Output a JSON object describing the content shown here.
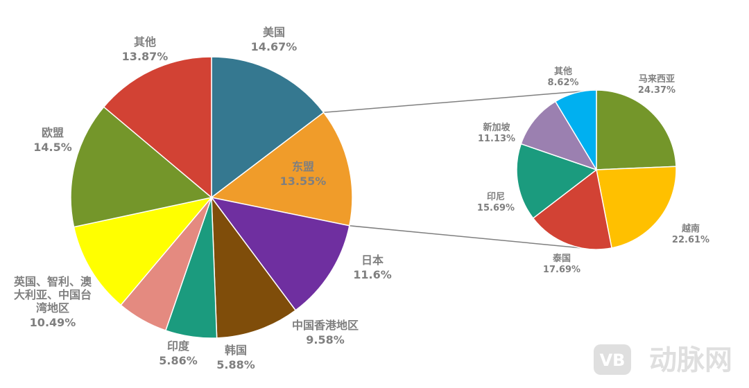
{
  "chart_data": [
    {
      "type": "pie",
      "title": "",
      "slices": [
        {
          "label": "美国",
          "value": 14.67,
          "display": "14.67%",
          "color": "#357890"
        },
        {
          "label": "东盟",
          "value": 13.55,
          "display": "13.55%",
          "color": "#f09c2a",
          "highlight_color": "#c00000"
        },
        {
          "label": "日本",
          "value": 11.6,
          "display": "11.6%",
          "color": "#6f2fa0"
        },
        {
          "label": "中国香港地区",
          "value": 9.58,
          "display": "9.58%",
          "color": "#7f4d0a"
        },
        {
          "label": "韩国",
          "value": 5.88,
          "display": "5.88%",
          "color": "#1b9b7e"
        },
        {
          "label": "印度",
          "value": 5.86,
          "display": "5.86%",
          "color": "#e48a80"
        },
        {
          "label": "英国、智利、澳大利亚、中国台湾地区",
          "label_lines": [
            "英国、智利、澳",
            "大利亚、中国台",
            "湾地区"
          ],
          "value": 10.49,
          "display": "10.49%",
          "color": "#ffff00"
        },
        {
          "label": "欧盟",
          "value": 14.5,
          "display": "14.5%",
          "color": "#74962a"
        },
        {
          "label": "其他",
          "value": 13.87,
          "display": "13.87%",
          "color": "#d24234"
        }
      ]
    },
    {
      "type": "pie",
      "title": "",
      "breakdown_of": "东盟",
      "slices": [
        {
          "label": "马来西亚",
          "value": 24.37,
          "display": "24.37%",
          "color": "#74962a"
        },
        {
          "label": "越南",
          "value": 22.61,
          "display": "22.61%",
          "color": "#ffc000"
        },
        {
          "label": "泰国",
          "value": 17.69,
          "display": "17.69%",
          "color": "#d24234"
        },
        {
          "label": "印尼",
          "value": 15.69,
          "display": "15.69%",
          "color": "#1b9b7e"
        },
        {
          "label": "新加坡",
          "value": 11.13,
          "display": "11.13%",
          "color": "#9b80b0"
        },
        {
          "label": "其他",
          "value": 8.62,
          "display": "8.62%",
          "color": "#00b0f0"
        }
      ]
    }
  ],
  "watermark": {
    "text": "动脉网",
    "logo_text": "VB"
  }
}
